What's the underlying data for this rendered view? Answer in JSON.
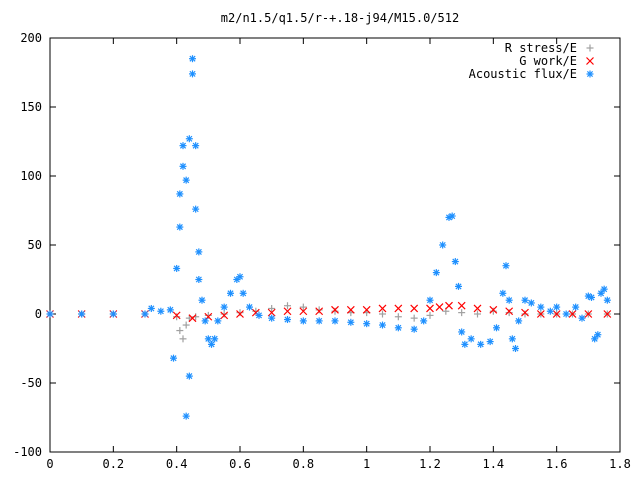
{
  "chart_data": {
    "type": "scatter",
    "title": "m2/n1.5/q1.5/r-+.18-j94/M15.0/512",
    "xlabel": "",
    "ylabel": "",
    "xlim": [
      0,
      1.8
    ],
    "ylim": [
      -100,
      200
    ],
    "x_ticks": [
      "0",
      "0.2",
      "0.4",
      "0.6",
      "0.8",
      "1",
      "1.2",
      "1.4",
      "1.6",
      "1.8"
    ],
    "y_ticks": [
      "200",
      "150",
      "100",
      "50",
      "0",
      "-50",
      "-100"
    ],
    "grid": false,
    "legend_position": "top-right",
    "series": [
      {
        "name": "R stress/E",
        "marker": "+",
        "color": "#a0a0a0",
        "points": [
          [
            0.0,
            0
          ],
          [
            0.1,
            0
          ],
          [
            0.2,
            0
          ],
          [
            0.3,
            0
          ],
          [
            0.4,
            -2
          ],
          [
            0.41,
            -12
          ],
          [
            0.42,
            -18
          ],
          [
            0.43,
            -8
          ],
          [
            0.44,
            -3
          ],
          [
            0.46,
            -2
          ],
          [
            0.5,
            -1
          ],
          [
            0.55,
            0
          ],
          [
            0.6,
            1
          ],
          [
            0.65,
            2
          ],
          [
            0.7,
            4
          ],
          [
            0.75,
            6
          ],
          [
            0.8,
            5
          ],
          [
            0.85,
            3
          ],
          [
            0.9,
            2
          ],
          [
            0.95,
            1
          ],
          [
            1.0,
            1
          ],
          [
            1.05,
            0
          ],
          [
            1.1,
            -2
          ],
          [
            1.15,
            -3
          ],
          [
            1.2,
            -1
          ],
          [
            1.25,
            2
          ],
          [
            1.3,
            1
          ],
          [
            1.35,
            0
          ],
          [
            1.4,
            2
          ],
          [
            1.45,
            1
          ],
          [
            1.5,
            0
          ],
          [
            1.55,
            0
          ],
          [
            1.6,
            0
          ],
          [
            1.65,
            0
          ],
          [
            1.7,
            0
          ],
          [
            1.76,
            0
          ]
        ]
      },
      {
        "name": "G work/E",
        "marker": "x",
        "color": "#ff0000",
        "points": [
          [
            0.0,
            0
          ],
          [
            0.1,
            0
          ],
          [
            0.2,
            0
          ],
          [
            0.3,
            0
          ],
          [
            0.4,
            -1
          ],
          [
            0.45,
            -3
          ],
          [
            0.5,
            -2
          ],
          [
            0.55,
            -1
          ],
          [
            0.6,
            0
          ],
          [
            0.65,
            1
          ],
          [
            0.7,
            1
          ],
          [
            0.75,
            2
          ],
          [
            0.8,
            2
          ],
          [
            0.85,
            2
          ],
          [
            0.9,
            3
          ],
          [
            0.95,
            3
          ],
          [
            1.0,
            3
          ],
          [
            1.05,
            4
          ],
          [
            1.1,
            4
          ],
          [
            1.15,
            4
          ],
          [
            1.2,
            4
          ],
          [
            1.23,
            5
          ],
          [
            1.26,
            6
          ],
          [
            1.3,
            6
          ],
          [
            1.35,
            4
          ],
          [
            1.4,
            3
          ],
          [
            1.45,
            2
          ],
          [
            1.5,
            1
          ],
          [
            1.55,
            0
          ],
          [
            1.6,
            0
          ],
          [
            1.65,
            0
          ],
          [
            1.7,
            0
          ],
          [
            1.76,
            0
          ]
        ]
      },
      {
        "name": "Acoustic flux/E",
        "marker": "*",
        "color": "#1e90ff",
        "points": [
          [
            0.0,
            0
          ],
          [
            0.1,
            0
          ],
          [
            0.2,
            0
          ],
          [
            0.3,
            0
          ],
          [
            0.32,
            4
          ],
          [
            0.35,
            2
          ],
          [
            0.38,
            3
          ],
          [
            0.39,
            -32
          ],
          [
            0.4,
            33
          ],
          [
            0.41,
            63
          ],
          [
            0.41,
            87
          ],
          [
            0.42,
            107
          ],
          [
            0.42,
            122
          ],
          [
            0.43,
            -74
          ],
          [
            0.43,
            97
          ],
          [
            0.44,
            -45
          ],
          [
            0.44,
            127
          ],
          [
            0.45,
            185
          ],
          [
            0.45,
            174
          ],
          [
            0.46,
            122
          ],
          [
            0.46,
            76
          ],
          [
            0.47,
            45
          ],
          [
            0.47,
            25
          ],
          [
            0.48,
            10
          ],
          [
            0.49,
            -5
          ],
          [
            0.5,
            -18
          ],
          [
            0.51,
            -22
          ],
          [
            0.52,
            -18
          ],
          [
            0.53,
            -5
          ],
          [
            0.55,
            5
          ],
          [
            0.57,
            15
          ],
          [
            0.59,
            25
          ],
          [
            0.6,
            27
          ],
          [
            0.61,
            15
          ],
          [
            0.63,
            5
          ],
          [
            0.66,
            -1
          ],
          [
            0.7,
            -3
          ],
          [
            0.75,
            -4
          ],
          [
            0.8,
            -5
          ],
          [
            0.85,
            -5
          ],
          [
            0.9,
            -5
          ],
          [
            0.95,
            -6
          ],
          [
            1.0,
            -7
          ],
          [
            1.05,
            -8
          ],
          [
            1.1,
            -10
          ],
          [
            1.15,
            -11
          ],
          [
            1.18,
            -5
          ],
          [
            1.2,
            10
          ],
          [
            1.22,
            30
          ],
          [
            1.24,
            50
          ],
          [
            1.26,
            70
          ],
          [
            1.27,
            71
          ],
          [
            1.28,
            38
          ],
          [
            1.29,
            20
          ],
          [
            1.3,
            -13
          ],
          [
            1.31,
            -22
          ],
          [
            1.33,
            -18
          ],
          [
            1.36,
            -22
          ],
          [
            1.39,
            -20
          ],
          [
            1.41,
            -10
          ],
          [
            1.43,
            15
          ],
          [
            1.44,
            35
          ],
          [
            1.45,
            10
          ],
          [
            1.46,
            -18
          ],
          [
            1.47,
            -25
          ],
          [
            1.48,
            -5
          ],
          [
            1.5,
            10
          ],
          [
            1.52,
            8
          ],
          [
            1.55,
            5
          ],
          [
            1.58,
            2
          ],
          [
            1.6,
            5
          ],
          [
            1.63,
            0
          ],
          [
            1.66,
            5
          ],
          [
            1.68,
            -3
          ],
          [
            1.7,
            13
          ],
          [
            1.71,
            12
          ],
          [
            1.72,
            -18
          ],
          [
            1.73,
            -15
          ],
          [
            1.74,
            15
          ],
          [
            1.75,
            18
          ],
          [
            1.76,
            10
          ]
        ]
      }
    ]
  }
}
